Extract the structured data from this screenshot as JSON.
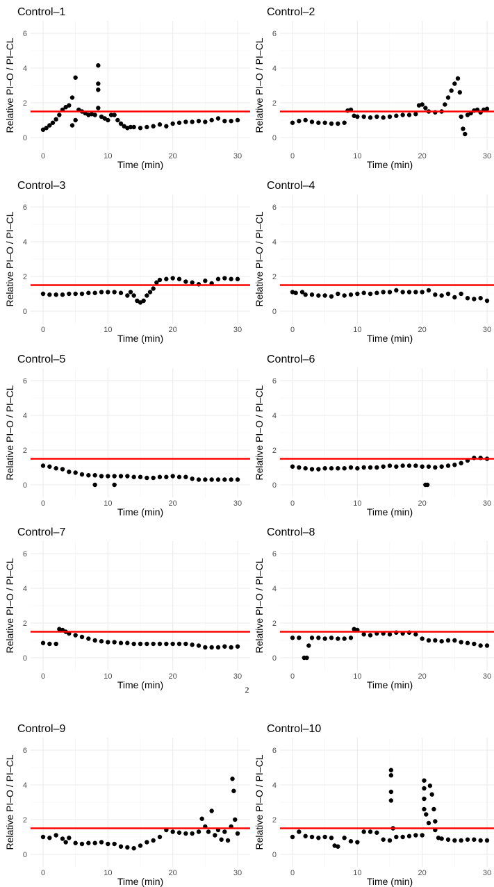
{
  "page_number": "2",
  "colors": {
    "points": "#000000",
    "threshold_line": "#ff0000",
    "grid": "#ebebeb",
    "panel_background": "#ffffff"
  },
  "chart_data": [
    {
      "type": "scatter",
      "title": "Control–1",
      "xlabel": "Time (min)",
      "ylabel": "Relative PI–O / PI–CL",
      "xlim": [
        0,
        30
      ],
      "ylim": [
        0,
        6
      ],
      "xticks": [
        0,
        10,
        20,
        30
      ],
      "yticks": [
        0,
        2,
        4,
        6
      ],
      "grid": true,
      "threshold": 1.5,
      "series": [
        {
          "x": [
            0,
            0.5,
            1,
            1.5,
            2,
            2.5,
            3,
            3.5,
            4,
            4.5,
            4.5,
            5,
            5,
            5.5,
            6,
            6.5,
            7,
            7.5,
            8,
            8.5,
            8.5,
            8.5,
            8.5,
            9,
            9.5,
            10,
            10.5,
            11,
            11.5,
            12,
            12.5,
            13,
            13.5,
            14,
            15,
            16,
            17,
            18,
            19,
            20,
            21,
            22,
            23,
            24,
            25,
            26,
            27,
            28,
            29,
            30
          ],
          "y": [
            0.45,
            0.55,
            0.7,
            0.85,
            1.05,
            1.3,
            1.6,
            1.75,
            1.85,
            2.3,
            0.7,
            3.45,
            1.0,
            1.6,
            1.5,
            1.4,
            1.3,
            1.35,
            1.3,
            4.15,
            3.1,
            2.75,
            1.7,
            1.2,
            1.1,
            1.0,
            1.3,
            1.3,
            1.0,
            0.8,
            0.65,
            0.55,
            0.6,
            0.6,
            0.55,
            0.6,
            0.65,
            0.75,
            0.65,
            0.8,
            0.85,
            0.9,
            0.9,
            0.95,
            0.9,
            1.0,
            1.1,
            0.95,
            0.95,
            1.0
          ]
        }
      ]
    },
    {
      "type": "scatter",
      "title": "Control–2",
      "xlabel": "Time (min)",
      "ylabel": "Relative PI–O / PI–CL",
      "xlim": [
        0,
        30
      ],
      "ylim": [
        0,
        6
      ],
      "xticks": [
        0,
        10,
        20,
        30
      ],
      "yticks": [
        0,
        2,
        4,
        6
      ],
      "grid": true,
      "threshold": 1.5,
      "series": [
        {
          "x": [
            0,
            1,
            2,
            3,
            4,
            5,
            6,
            7,
            8,
            8.5,
            9,
            9.5,
            10,
            11,
            12,
            13,
            14,
            15,
            16,
            17,
            18,
            19,
            19.5,
            20,
            20.5,
            21,
            22,
            23,
            23.5,
            24,
            24.5,
            25,
            25.5,
            25.8,
            26,
            26.3,
            26.6,
            27,
            27.5,
            28,
            28.5,
            29,
            29.5,
            30
          ],
          "y": [
            0.85,
            0.95,
            1.0,
            0.9,
            0.85,
            0.85,
            0.8,
            0.8,
            0.85,
            1.55,
            1.6,
            1.25,
            1.2,
            1.2,
            1.15,
            1.2,
            1.15,
            1.2,
            1.25,
            1.3,
            1.3,
            1.35,
            1.85,
            1.9,
            1.7,
            1.5,
            1.45,
            1.5,
            1.9,
            2.3,
            2.7,
            3.1,
            3.4,
            2.6,
            1.2,
            0.5,
            0.2,
            1.3,
            1.4,
            1.55,
            1.6,
            1.45,
            1.6,
            1.65
          ]
        }
      ]
    },
    {
      "type": "scatter",
      "title": "Control–3",
      "xlabel": "Time (min)",
      "ylabel": "Relative PI–O / PI–CL",
      "xlim": [
        0,
        30
      ],
      "ylim": [
        0,
        6
      ],
      "xticks": [
        0,
        10,
        20,
        30
      ],
      "yticks": [
        0,
        2,
        4,
        6
      ],
      "grid": true,
      "threshold": 1.5,
      "series": [
        {
          "x": [
            0,
            1,
            2,
            3,
            4,
            5,
            6,
            7,
            8,
            9,
            10,
            11,
            12,
            13,
            13.5,
            14,
            14.5,
            15,
            15.5,
            16,
            16.5,
            17,
            17.5,
            18,
            19,
            20,
            21,
            22,
            23,
            24,
            25,
            26,
            27,
            28,
            29,
            30
          ],
          "y": [
            1.0,
            0.95,
            0.95,
            0.95,
            1.0,
            1.0,
            1.0,
            1.05,
            1.05,
            1.1,
            1.1,
            1.1,
            1.05,
            0.9,
            1.1,
            0.9,
            0.6,
            0.5,
            0.6,
            0.9,
            1.1,
            1.3,
            1.65,
            1.8,
            1.85,
            1.9,
            1.85,
            1.7,
            1.65,
            1.55,
            1.75,
            1.6,
            1.85,
            1.9,
            1.85,
            1.85
          ]
        }
      ]
    },
    {
      "type": "scatter",
      "title": "Control–4",
      "xlabel": "Time (min)",
      "ylabel": "Relative PI–O / PI–CL",
      "xlim": [
        0,
        30
      ],
      "ylim": [
        0,
        6
      ],
      "xticks": [
        0,
        10,
        20,
        30
      ],
      "yticks": [
        0,
        2,
        4,
        6
      ],
      "grid": true,
      "threshold": 1.5,
      "series": [
        {
          "x": [
            0,
            0.5,
            1.5,
            2,
            3,
            4,
            5,
            6,
            7,
            8,
            9,
            10,
            11,
            12,
            13,
            14,
            15,
            16,
            17,
            18,
            19,
            20,
            21,
            22,
            23,
            24,
            25,
            26,
            27,
            28,
            29,
            30
          ],
          "y": [
            1.1,
            1.05,
            1.1,
            0.95,
            0.95,
            0.9,
            0.9,
            0.85,
            1.0,
            0.9,
            0.95,
            1.0,
            1.05,
            1.0,
            1.05,
            1.1,
            1.1,
            1.2,
            1.1,
            1.1,
            1.1,
            1.1,
            1.2,
            0.95,
            0.9,
            1.0,
            0.8,
            1.0,
            0.75,
            0.7,
            0.75,
            0.6
          ]
        }
      ]
    },
    {
      "type": "scatter",
      "title": "Control–5",
      "xlabel": "Time (min)",
      "ylabel": "Relative PI–O / PI–CL",
      "xlim": [
        0,
        30
      ],
      "ylim": [
        0,
        6
      ],
      "xticks": [
        0,
        10,
        20,
        30
      ],
      "yticks": [
        0,
        2,
        4,
        6
      ],
      "grid": true,
      "threshold": 1.5,
      "series": [
        {
          "x": [
            0,
            1,
            2,
            3,
            4,
            5,
            6,
            7,
            8,
            8,
            9,
            10,
            11,
            11,
            12,
            13,
            14,
            15,
            16,
            17,
            18,
            19,
            20,
            21,
            22,
            23,
            24,
            25,
            26,
            27,
            28,
            29,
            30
          ],
          "y": [
            1.1,
            1.05,
            0.95,
            0.9,
            0.75,
            0.7,
            0.6,
            0.55,
            0.55,
            0.0,
            0.5,
            0.5,
            0.5,
            0.0,
            0.5,
            0.5,
            0.45,
            0.45,
            0.4,
            0.4,
            0.45,
            0.45,
            0.5,
            0.45,
            0.45,
            0.35,
            0.3,
            0.3,
            0.3,
            0.3,
            0.3,
            0.3,
            0.3
          ]
        }
      ]
    },
    {
      "type": "scatter",
      "title": "Control–6",
      "xlabel": "Time (min)",
      "ylabel": "Relative PI–O / PI–CL",
      "xlim": [
        0,
        30
      ],
      "ylim": [
        0,
        6
      ],
      "xticks": [
        0,
        10,
        20,
        30
      ],
      "yticks": [
        0,
        2,
        4,
        6
      ],
      "grid": true,
      "threshold": 1.5,
      "series": [
        {
          "x": [
            0,
            1,
            2,
            3,
            4,
            5,
            6,
            7,
            8,
            9,
            10,
            11,
            12,
            13,
            14,
            15,
            16,
            17,
            18,
            19,
            20,
            20.5,
            20.8,
            21,
            22,
            23,
            24,
            25,
            26,
            27,
            28,
            29,
            30
          ],
          "y": [
            1.05,
            1.0,
            0.95,
            0.9,
            0.9,
            0.95,
            0.95,
            0.95,
            0.95,
            1.0,
            0.95,
            1.0,
            1.0,
            1.0,
            1.05,
            1.1,
            1.05,
            1.1,
            1.1,
            1.1,
            1.05,
            0.0,
            0.0,
            1.05,
            1.0,
            1.05,
            1.1,
            1.15,
            1.25,
            1.4,
            1.55,
            1.55,
            1.5
          ]
        }
      ]
    },
    {
      "type": "scatter",
      "title": "Control–7",
      "xlabel": "Time (min)",
      "ylabel": "Relative PI–O / PI–CL",
      "xlim": [
        0,
        30
      ],
      "ylim": [
        0,
        6
      ],
      "xticks": [
        0,
        10,
        20,
        30
      ],
      "yticks": [
        0,
        2,
        4,
        6
      ],
      "grid": true,
      "threshold": 1.5,
      "series": [
        {
          "x": [
            0,
            1,
            2,
            2.5,
            3,
            3.5,
            4,
            5,
            6,
            7,
            8,
            9,
            10,
            11,
            12,
            13,
            14,
            15,
            16,
            17,
            18,
            19,
            20,
            21,
            22,
            23,
            24,
            25,
            26,
            27,
            28,
            29,
            30
          ],
          "y": [
            0.85,
            0.8,
            0.8,
            1.65,
            1.6,
            1.5,
            1.4,
            1.3,
            1.2,
            1.1,
            1.0,
            0.95,
            0.9,
            0.9,
            0.85,
            0.85,
            0.8,
            0.8,
            0.8,
            0.8,
            0.8,
            0.8,
            0.8,
            0.8,
            0.8,
            0.75,
            0.7,
            0.6,
            0.6,
            0.6,
            0.65,
            0.6,
            0.65
          ]
        }
      ]
    },
    {
      "type": "scatter",
      "title": "Control–8",
      "xlabel": "Time (min)",
      "ylabel": "Relative PI–O / PI–CL",
      "xlim": [
        0,
        30
      ],
      "ylim": [
        0,
        6
      ],
      "xticks": [
        0,
        10,
        20,
        30
      ],
      "yticks": [
        0,
        2,
        4,
        6
      ],
      "grid": true,
      "threshold": 1.5,
      "series": [
        {
          "x": [
            0,
            1,
            1.8,
            2.2,
            2.5,
            3,
            4,
            5,
            6,
            7,
            8,
            9,
            9.5,
            10,
            11,
            12,
            13,
            14,
            15,
            16,
            17,
            18,
            19,
            20,
            21,
            22,
            23,
            24,
            25,
            26,
            27,
            28,
            29,
            30
          ],
          "y": [
            1.15,
            1.15,
            0.0,
            0.0,
            0.7,
            1.15,
            1.15,
            1.1,
            1.15,
            1.1,
            1.1,
            1.15,
            1.65,
            1.6,
            1.35,
            1.3,
            1.4,
            1.4,
            1.35,
            1.45,
            1.4,
            1.45,
            1.35,
            1.1,
            1.0,
            1.0,
            0.95,
            1.0,
            1.0,
            0.9,
            0.85,
            0.8,
            0.7,
            0.7
          ]
        }
      ]
    },
    {
      "type": "scatter",
      "title": "Control–9",
      "xlabel": "Time (min)",
      "ylabel": "Relative PI–O / PI–CL",
      "xlim": [
        0,
        30
      ],
      "ylim": [
        0,
        6
      ],
      "xticks": [
        0,
        10,
        20,
        30
      ],
      "yticks": [
        0,
        2,
        4,
        6
      ],
      "grid": true,
      "threshold": 1.5,
      "series": [
        {
          "x": [
            0,
            1,
            2,
            3,
            3.5,
            4,
            5,
            6,
            7,
            8,
            9,
            10,
            11,
            12,
            13,
            14,
            15,
            16,
            17,
            18,
            19,
            20,
            21,
            22,
            23,
            24,
            24.5,
            25,
            25.5,
            26,
            26.5,
            27,
            27.5,
            28,
            28.5,
            29,
            29.2,
            29.4,
            29.6,
            30
          ],
          "y": [
            1.0,
            0.95,
            1.1,
            0.9,
            0.7,
            0.95,
            0.65,
            0.6,
            0.65,
            0.65,
            0.7,
            0.6,
            0.6,
            0.45,
            0.4,
            0.35,
            0.5,
            0.7,
            0.8,
            1.0,
            1.4,
            1.3,
            1.25,
            1.2,
            1.2,
            1.3,
            2.05,
            1.6,
            1.3,
            2.5,
            1.1,
            1.4,
            0.85,
            1.3,
            0.8,
            1.6,
            4.35,
            3.65,
            2.0,
            1.2
          ]
        }
      ]
    },
    {
      "type": "scatter",
      "title": "Control–10",
      "xlabel": "Time (min)",
      "ylabel": "Relative PI–O / PI–CL",
      "xlim": [
        0,
        30
      ],
      "ylim": [
        0,
        6
      ],
      "xticks": [
        0,
        10,
        20,
        30
      ],
      "yticks": [
        0,
        2,
        4,
        6
      ],
      "grid": true,
      "threshold": 1.5,
      "series": [
        {
          "x": [
            0,
            1,
            2,
            3,
            4,
            5,
            6,
            6.5,
            7,
            8,
            9,
            10,
            11,
            12,
            13,
            14,
            15,
            15.2,
            15.2,
            15.2,
            15.2,
            15.5,
            16,
            17,
            18,
            19,
            20,
            20.3,
            20.3,
            20.3,
            20.3,
            20.6,
            21,
            21.2,
            21.5,
            21.8,
            22,
            22,
            22.5,
            23,
            24,
            25,
            26,
            27,
            28,
            29,
            30
          ],
          "y": [
            1.0,
            1.3,
            1.05,
            1.0,
            0.95,
            1.0,
            0.95,
            0.5,
            0.45,
            0.95,
            0.75,
            0.7,
            1.3,
            1.3,
            1.25,
            0.85,
            0.8,
            4.85,
            4.55,
            3.6,
            3.1,
            1.5,
            1.0,
            1.0,
            1.05,
            1.1,
            1.1,
            4.25,
            3.8,
            3.2,
            2.6,
            2.3,
            1.8,
            3.95,
            3.45,
            2.6,
            1.9,
            1.4,
            0.95,
            0.9,
            0.85,
            0.8,
            0.8,
            0.85,
            0.85,
            0.8,
            0.8
          ]
        }
      ]
    }
  ]
}
